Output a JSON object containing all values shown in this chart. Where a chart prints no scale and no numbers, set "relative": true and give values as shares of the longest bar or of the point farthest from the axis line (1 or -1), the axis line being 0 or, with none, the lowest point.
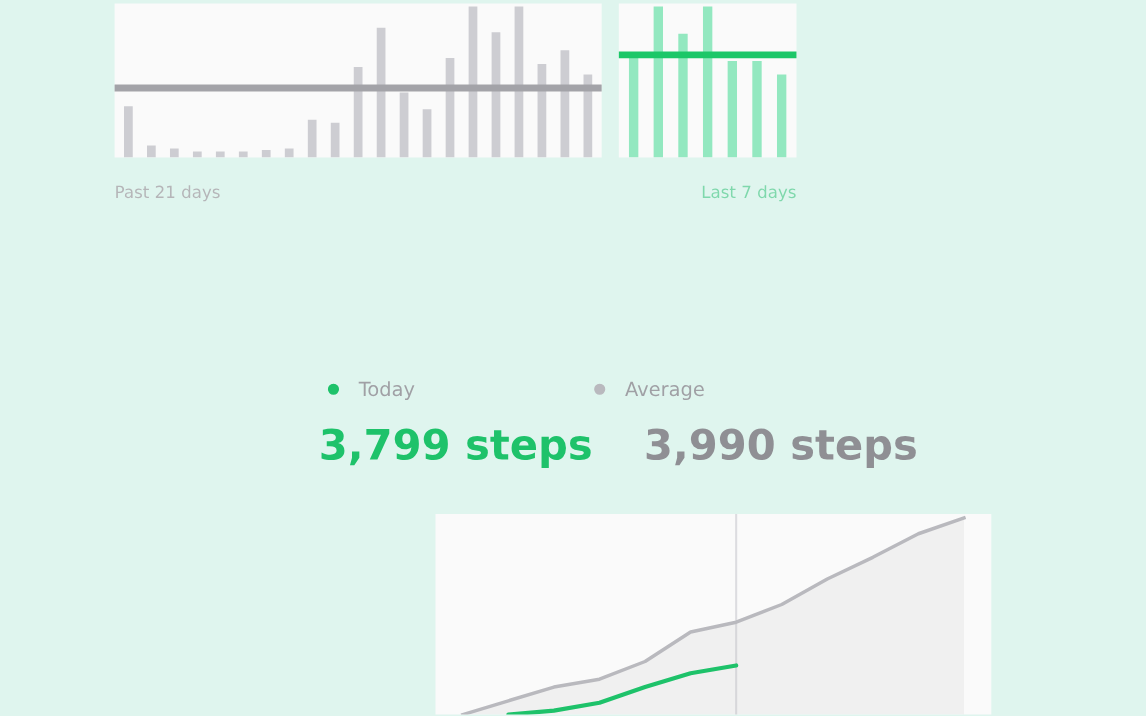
{
  "chart_data": [
    {
      "type": "bar",
      "relative": true,
      "categories": [
        null,
        null,
        null,
        null,
        null,
        null,
        null,
        null,
        null,
        null,
        null,
        null,
        null,
        null,
        null,
        null,
        null,
        null,
        null,
        null,
        null
      ],
      "series": [
        {
          "color": "#cdcdd2",
          "values": [
            0.34,
            0.08,
            0.06,
            0.04,
            0.04,
            0.04,
            0.05,
            0.06,
            0.25,
            0.23,
            0.6,
            0.86,
            0.43,
            0.32,
            0.66,
            1.0,
            0.83,
            1.0,
            0.62,
            0.71,
            0.55
          ]
        }
      ],
      "ref_lines": [
        {
          "axis": "y",
          "value": 0.46,
          "color": "#a3a3a8"
        }
      ],
      "annotations": [
        "Past 21 days"
      ]
    },
    {
      "type": "bar",
      "relative": true,
      "categories": [
        null,
        null,
        null,
        null,
        null,
        null,
        null
      ],
      "series": [
        {
          "color": "#93e8c0",
          "values": [
            0.68,
            1.0,
            0.82,
            1.0,
            0.64,
            0.64,
            0.55
          ]
        }
      ],
      "ref_lines": [
        {
          "axis": "y",
          "value": 0.68,
          "color": "#1cc768"
        }
      ],
      "annotations": [
        "Last 7 days"
      ]
    },
    {
      "type": "line",
      "relative": true,
      "categories": [
        null,
        null,
        null,
        null,
        null,
        null,
        null,
        null,
        null,
        null,
        null,
        null
      ],
      "series": [
        {
          "name": "Today",
          "color": "#1ec26a",
          "values": [
            null,
            0,
            0.02,
            0.06,
            0.14,
            0.21,
            0.25,
            null,
            null,
            null,
            null,
            null
          ]
        },
        {
          "name": "Average",
          "type": "area",
          "color": "#b9b9be",
          "values": [
            0,
            0.07,
            0.14,
            0.18,
            0.27,
            0.42,
            0.47,
            0.56,
            0.69,
            0.8,
            0.92,
            1.0
          ]
        }
      ],
      "annotations": [
        "3,799 steps",
        "3,990 steps"
      ],
      "legend": "top left"
    }
  ]
}
